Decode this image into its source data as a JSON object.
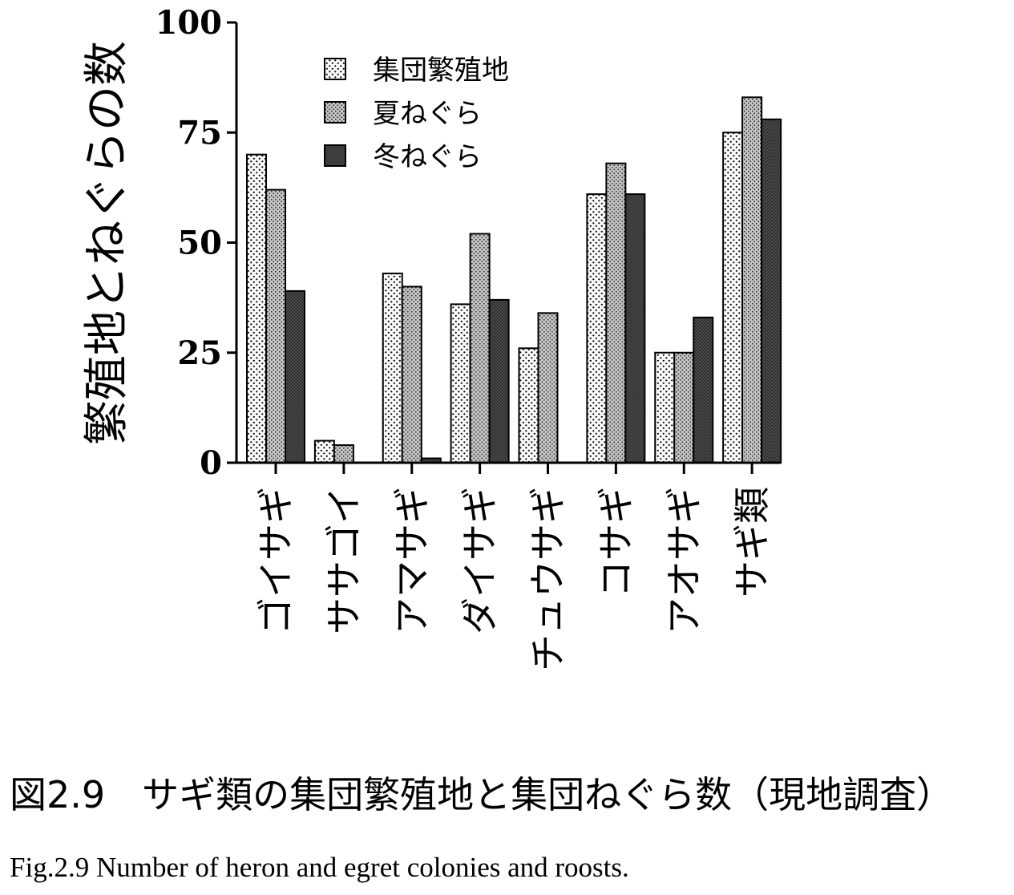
{
  "chart_data": {
    "type": "bar",
    "ylabel": "繁殖地とねぐらの数",
    "xlabel": "",
    "ylim": [
      0,
      100
    ],
    "yticks": [
      "0",
      "25",
      "50",
      "75",
      "100"
    ],
    "categories": [
      "ゴイサギ",
      "ササゴイ",
      "アマサギ",
      "ダイサギ",
      "チュウサギ",
      "コサギ",
      "アオサギ",
      "サギ類"
    ],
    "series": [
      {
        "name": "集団繁殖地",
        "pattern": "light-dots",
        "values": [
          70,
          5,
          43,
          36,
          26,
          61,
          25,
          75
        ]
      },
      {
        "name": "夏ねぐら",
        "pattern": "medium-dots",
        "values": [
          62,
          4,
          40,
          52,
          34,
          68,
          25,
          83
        ]
      },
      {
        "name": "冬ねぐら",
        "pattern": "dark",
        "values": [
          39,
          0,
          1,
          37,
          0,
          61,
          33,
          78
        ]
      }
    ],
    "legend_position": "top-left",
    "grid": false
  },
  "caption": {
    "ja": "図2.9　サギ類の集団繁殖地と集団ねぐら数（現地調査）",
    "en": "Fig.2.9 Number of heron and egret colonies and roosts."
  }
}
